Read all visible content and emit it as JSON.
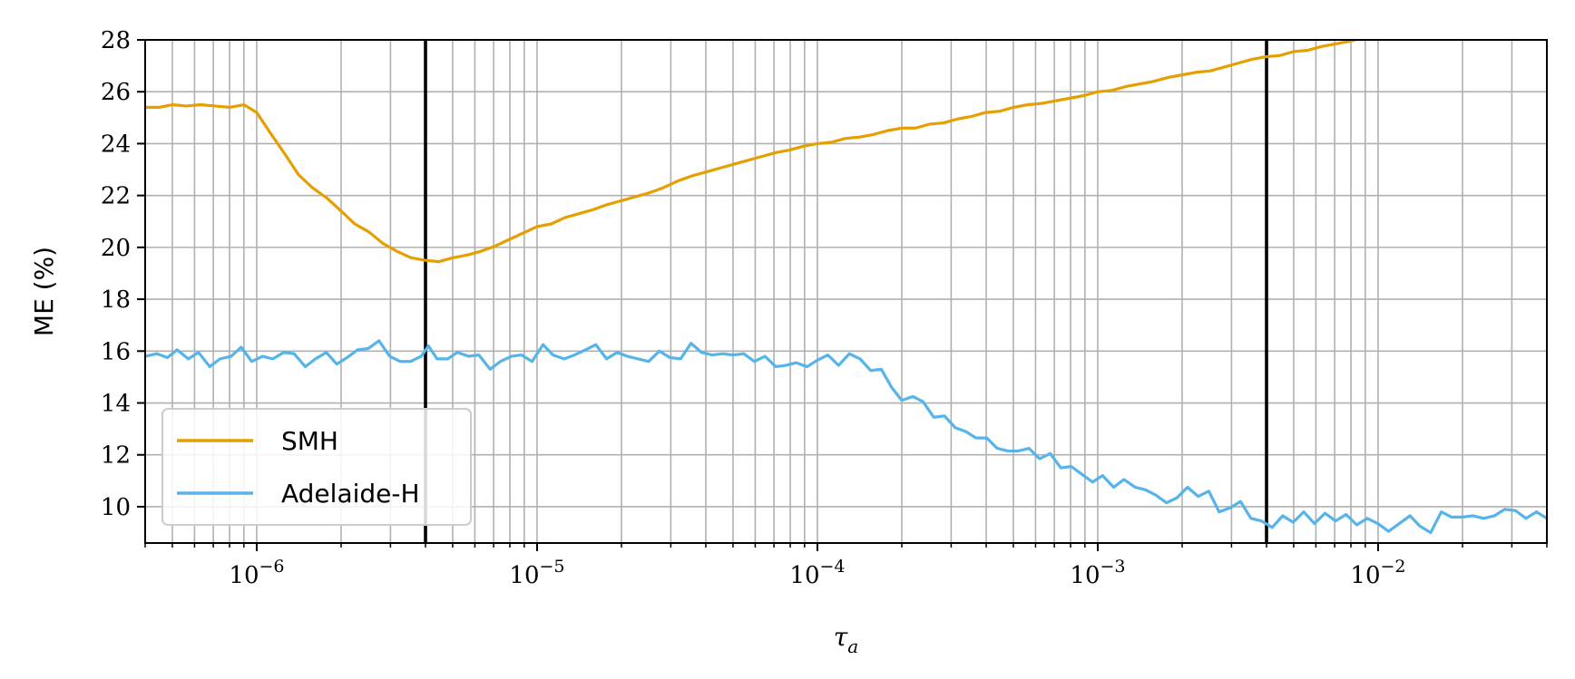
{
  "chart_data": {
    "type": "line",
    "xscale": "log",
    "xlim": [
      4e-07,
      0.04
    ],
    "ylim": [
      8.6,
      28
    ],
    "xlabel_base": "τ",
    "xlabel_sub": "a",
    "ylabel": "ME (%)",
    "grid": "both (major and minor)",
    "legend_position": "lower-left",
    "xticks": [
      {
        "value": 1e-06,
        "exp": "−6"
      },
      {
        "value": 1e-05,
        "exp": "−5"
      },
      {
        "value": 0.0001,
        "exp": "−4"
      },
      {
        "value": 0.001,
        "exp": "−3"
      },
      {
        "value": 0.01,
        "exp": "−2"
      }
    ],
    "tick_base": "10",
    "yticks": [
      10,
      12,
      14,
      16,
      18,
      20,
      22,
      24,
      26,
      28
    ],
    "vertical_lines": [
      4e-06,
      0.004
    ],
    "series": [
      {
        "name": "SMH",
        "color": "#E69F00",
        "points": [
          [
            4e-07,
            25.4
          ],
          [
            4.5e-07,
            25.4
          ],
          [
            5e-07,
            25.5
          ],
          [
            5.6e-07,
            25.45
          ],
          [
            6.3e-07,
            25.5
          ],
          [
            7.1e-07,
            25.45
          ],
          [
            8e-07,
            25.4
          ],
          [
            9e-07,
            25.5
          ],
          [
            1e-06,
            25.2
          ],
          [
            1.12e-06,
            24.4
          ],
          [
            1.26e-06,
            23.6
          ],
          [
            1.41e-06,
            22.8
          ],
          [
            1.58e-06,
            22.3
          ],
          [
            1.78e-06,
            21.9
          ],
          [
            2e-06,
            21.4
          ],
          [
            2.24e-06,
            20.9
          ],
          [
            2.51e-06,
            20.6
          ],
          [
            2.82e-06,
            20.15
          ],
          [
            3.16e-06,
            19.85
          ],
          [
            3.55e-06,
            19.6
          ],
          [
            4e-06,
            19.5
          ],
          [
            4.47e-06,
            19.45
          ],
          [
            5.01e-06,
            19.6
          ],
          [
            5.62e-06,
            19.7
          ],
          [
            6.31e-06,
            19.85
          ],
          [
            7.08e-06,
            20.05
          ],
          [
            7.94e-06,
            20.3
          ],
          [
            8.91e-06,
            20.55
          ],
          [
            1e-05,
            20.8
          ],
          [
            1.12e-05,
            20.9
          ],
          [
            1.26e-05,
            21.15
          ],
          [
            1.41e-05,
            21.3
          ],
          [
            1.58e-05,
            21.45
          ],
          [
            1.78e-05,
            21.65
          ],
          [
            2e-05,
            21.8
          ],
          [
            2.24e-05,
            21.95
          ],
          [
            2.51e-05,
            22.1
          ],
          [
            2.82e-05,
            22.3
          ],
          [
            3.16e-05,
            22.55
          ],
          [
            3.55e-05,
            22.75
          ],
          [
            3.98e-05,
            22.9
          ],
          [
            4.47e-05,
            23.05
          ],
          [
            5.01e-05,
            23.2
          ],
          [
            5.62e-05,
            23.35
          ],
          [
            6.31e-05,
            23.5
          ],
          [
            7.08e-05,
            23.65
          ],
          [
            7.94e-05,
            23.75
          ],
          [
            8.91e-05,
            23.9
          ],
          [
            0.0001,
            24.0
          ],
          [
            0.000112,
            24.05
          ],
          [
            0.000126,
            24.2
          ],
          [
            0.000141,
            24.25
          ],
          [
            0.000158,
            24.35
          ],
          [
            0.000178,
            24.5
          ],
          [
            0.0002,
            24.6
          ],
          [
            0.000224,
            24.6
          ],
          [
            0.000251,
            24.75
          ],
          [
            0.000282,
            24.8
          ],
          [
            0.000316,
            24.95
          ],
          [
            0.000355,
            25.05
          ],
          [
            0.000398,
            25.2
          ],
          [
            0.000447,
            25.25
          ],
          [
            0.000501,
            25.4
          ],
          [
            0.000562,
            25.5
          ],
          [
            0.000631,
            25.55
          ],
          [
            0.000708,
            25.65
          ],
          [
            0.000794,
            25.75
          ],
          [
            0.000891,
            25.85
          ],
          [
            0.001,
            26.0
          ],
          [
            0.00112,
            26.05
          ],
          [
            0.00126,
            26.2
          ],
          [
            0.00141,
            26.3
          ],
          [
            0.00158,
            26.4
          ],
          [
            0.00178,
            26.55
          ],
          [
            0.002,
            26.65
          ],
          [
            0.00224,
            26.75
          ],
          [
            0.00251,
            26.8
          ],
          [
            0.00282,
            26.95
          ],
          [
            0.00316,
            27.1
          ],
          [
            0.00355,
            27.25
          ],
          [
            0.00398,
            27.35
          ],
          [
            0.00447,
            27.4
          ],
          [
            0.00501,
            27.55
          ],
          [
            0.00562,
            27.6
          ],
          [
            0.00631,
            27.75
          ],
          [
            0.00708,
            27.85
          ],
          [
            0.00794,
            27.95
          ],
          [
            0.0086,
            28.05
          ]
        ]
      },
      {
        "name": "Adelaide-H",
        "color": "#56B4E9",
        "points": [
          [
            4e-07,
            15.8
          ],
          [
            4.4e-07,
            15.9
          ],
          [
            4.8e-07,
            15.75
          ],
          [
            5.2e-07,
            16.05
          ],
          [
            5.7e-07,
            15.7
          ],
          [
            6.2e-07,
            15.95
          ],
          [
            6.8e-07,
            15.4
          ],
          [
            7.4e-07,
            15.7
          ],
          [
            8.1e-07,
            15.8
          ],
          [
            8.8e-07,
            16.15
          ],
          [
            9.6e-07,
            15.6
          ],
          [
            1.05e-06,
            15.8
          ],
          [
            1.14e-06,
            15.7
          ],
          [
            1.25e-06,
            15.95
          ],
          [
            1.36e-06,
            15.9
          ],
          [
            1.49e-06,
            15.4
          ],
          [
            1.62e-06,
            15.7
          ],
          [
            1.77e-06,
            15.95
          ],
          [
            1.93e-06,
            15.5
          ],
          [
            2.1e-06,
            15.75
          ],
          [
            2.29e-06,
            16.05
          ],
          [
            2.5e-06,
            16.1
          ],
          [
            2.73e-06,
            16.4
          ],
          [
            2.98e-06,
            15.8
          ],
          [
            3.25e-06,
            15.6
          ],
          [
            3.54e-06,
            15.6
          ],
          [
            3.86e-06,
            15.8
          ],
          [
            4.1e-06,
            16.2
          ],
          [
            4.4e-06,
            15.7
          ],
          [
            4.8e-06,
            15.7
          ],
          [
            5.2e-06,
            15.95
          ],
          [
            5.7e-06,
            15.8
          ],
          [
            6.2e-06,
            15.85
          ],
          [
            6.8e-06,
            15.3
          ],
          [
            7.4e-06,
            15.6
          ],
          [
            8.1e-06,
            15.8
          ],
          [
            8.8e-06,
            15.85
          ],
          [
            9.6e-06,
            15.6
          ],
          [
            1.05e-05,
            16.25
          ],
          [
            1.14e-05,
            15.85
          ],
          [
            1.25e-05,
            15.7
          ],
          [
            1.36e-05,
            15.85
          ],
          [
            1.49e-05,
            16.05
          ],
          [
            1.62e-05,
            16.25
          ],
          [
            1.77e-05,
            15.7
          ],
          [
            1.93e-05,
            15.95
          ],
          [
            2.1e-05,
            15.8
          ],
          [
            2.29e-05,
            15.7
          ],
          [
            2.5e-05,
            15.6
          ],
          [
            2.73e-05,
            16.0
          ],
          [
            2.98e-05,
            15.75
          ],
          [
            3.25e-05,
            15.7
          ],
          [
            3.54e-05,
            16.3
          ],
          [
            3.86e-05,
            15.95
          ],
          [
            4.21e-05,
            15.85
          ],
          [
            4.59e-05,
            15.9
          ],
          [
            5e-05,
            15.85
          ],
          [
            5.46e-05,
            15.9
          ],
          [
            5.96e-05,
            15.6
          ],
          [
            6.5e-05,
            15.8
          ],
          [
            7.1e-05,
            15.4
          ],
          [
            7.7e-05,
            15.45
          ],
          [
            8.4e-05,
            15.55
          ],
          [
            9.2e-05,
            15.4
          ],
          [
            0.0001,
            15.65
          ],
          [
            0.000109,
            15.85
          ],
          [
            0.000119,
            15.45
          ],
          [
            0.00013,
            15.9
          ],
          [
            0.000142,
            15.7
          ],
          [
            0.000155,
            15.25
          ],
          [
            0.000169,
            15.3
          ],
          [
            0.000184,
            14.6
          ],
          [
            0.0002,
            14.1
          ],
          [
            0.000219,
            14.25
          ],
          [
            0.000238,
            14.05
          ],
          [
            0.00026,
            13.45
          ],
          [
            0.000284,
            13.5
          ],
          [
            0.00031,
            13.05
          ],
          [
            0.000338,
            12.9
          ],
          [
            0.000368,
            12.65
          ],
          [
            0.000402,
            12.65
          ],
          [
            0.000438,
            12.25
          ],
          [
            0.000478,
            12.15
          ],
          [
            0.000521,
            12.15
          ],
          [
            0.000569,
            12.25
          ],
          [
            0.00062,
            11.85
          ],
          [
            0.000677,
            12.05
          ],
          [
            0.000738,
            11.5
          ],
          [
            0.000805,
            11.55
          ],
          [
            0.000878,
            11.25
          ],
          [
            0.000958,
            10.95
          ],
          [
            0.00104,
            11.2
          ],
          [
            0.00114,
            10.75
          ],
          [
            0.00124,
            11.05
          ],
          [
            0.00136,
            10.75
          ],
          [
            0.00148,
            10.65
          ],
          [
            0.00161,
            10.45
          ],
          [
            0.00176,
            10.15
          ],
          [
            0.00192,
            10.35
          ],
          [
            0.00209,
            10.75
          ],
          [
            0.00228,
            10.4
          ],
          [
            0.00249,
            10.6
          ],
          [
            0.00271,
            9.8
          ],
          [
            0.00296,
            9.95
          ],
          [
            0.00323,
            10.2
          ],
          [
            0.00352,
            9.55
          ],
          [
            0.00384,
            9.45
          ],
          [
            0.00419,
            9.2
          ],
          [
            0.00457,
            9.65
          ],
          [
            0.00498,
            9.4
          ],
          [
            0.00543,
            9.8
          ],
          [
            0.00593,
            9.35
          ],
          [
            0.00647,
            9.75
          ],
          [
            0.00705,
            9.45
          ],
          [
            0.00769,
            9.7
          ],
          [
            0.00839,
            9.3
          ],
          [
            0.00915,
            9.55
          ],
          [
            0.00998,
            9.35
          ],
          [
            0.0109,
            9.05
          ],
          [
            0.0119,
            9.35
          ],
          [
            0.013,
            9.65
          ],
          [
            0.0141,
            9.25
          ],
          [
            0.0154,
            9.0
          ],
          [
            0.0168,
            9.8
          ],
          [
            0.0183,
            9.6
          ],
          [
            0.02,
            9.6
          ],
          [
            0.0218,
            9.65
          ],
          [
            0.0238,
            9.55
          ],
          [
            0.026,
            9.65
          ],
          [
            0.0283,
            9.9
          ],
          [
            0.0309,
            9.85
          ],
          [
            0.0337,
            9.55
          ],
          [
            0.0367,
            9.8
          ],
          [
            0.04,
            9.55
          ]
        ]
      }
    ]
  }
}
